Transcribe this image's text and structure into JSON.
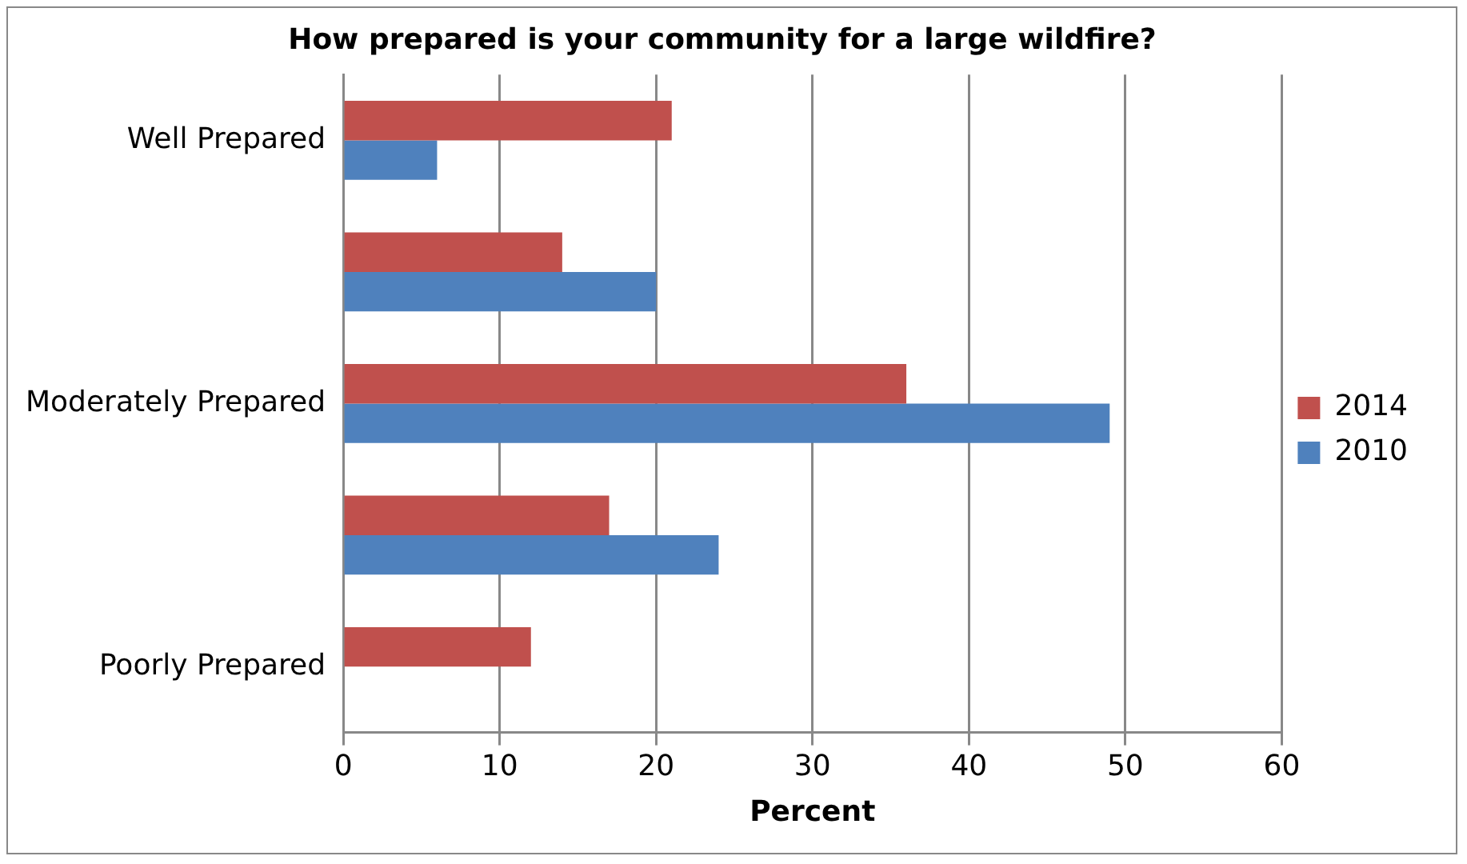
{
  "chart_data": {
    "type": "bar",
    "orientation": "horizontal",
    "title": "How prepared is your community for a large wildfire?",
    "xlabel": "Percent",
    "categories": [
      "Well Prepared",
      null,
      "Moderately Prepared",
      null,
      "Poorly Prepared"
    ],
    "series": [
      {
        "name": "2014",
        "color": "#c0504d",
        "values": [
          21,
          14,
          36,
          17,
          12
        ]
      },
      {
        "name": "2010",
        "color": "#4f81bd",
        "values": [
          6,
          20,
          49,
          24,
          0
        ]
      }
    ],
    "xlim": [
      0,
      60
    ],
    "xticks": [
      0,
      10,
      20,
      30,
      40,
      50,
      60
    ],
    "grid": "x",
    "legend": "right"
  }
}
